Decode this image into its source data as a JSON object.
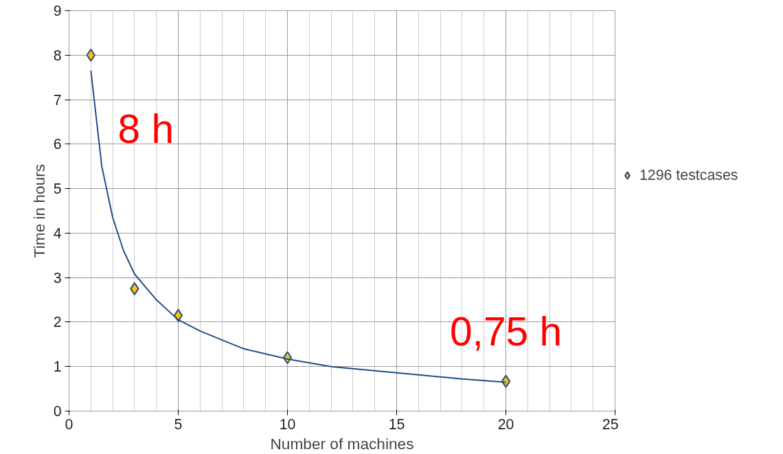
{
  "chart_data": {
    "type": "scatter",
    "xlabel": "Number of machines",
    "ylabel": "Time in hours",
    "xlim": [
      0,
      25
    ],
    "xticks": [
      0,
      5,
      10,
      15,
      20,
      25
    ],
    "ylim": [
      0,
      9
    ],
    "yticks": [
      0,
      1,
      2,
      3,
      4,
      5,
      6,
      7,
      8,
      9
    ],
    "grid": true,
    "legend": "right",
    "marker": "diamond",
    "series": [
      {
        "name": "1296 testcases",
        "color": "#ffc000",
        "x": [
          1,
          3,
          5,
          10,
          20
        ],
        "values": [
          8.0,
          2.75,
          2.15,
          1.2,
          0.67
        ]
      },
      {
        "type": "line",
        "marker": "none",
        "color": "#1f4e8c",
        "x": [
          1,
          1.5,
          2,
          2.5,
          3,
          4,
          5,
          6,
          8,
          10,
          12,
          15,
          18,
          20
        ],
        "values": [
          7.65,
          5.5,
          4.35,
          3.6,
          3.08,
          2.5,
          2.05,
          1.8,
          1.4,
          1.17,
          1.0,
          0.86,
          0.72,
          0.65
        ]
      }
    ],
    "annotations": [
      {
        "text": "8 h",
        "x": 1,
        "y": 8
      },
      {
        "text": "0,75 h",
        "x": 20,
        "y": 0.67
      }
    ]
  }
}
